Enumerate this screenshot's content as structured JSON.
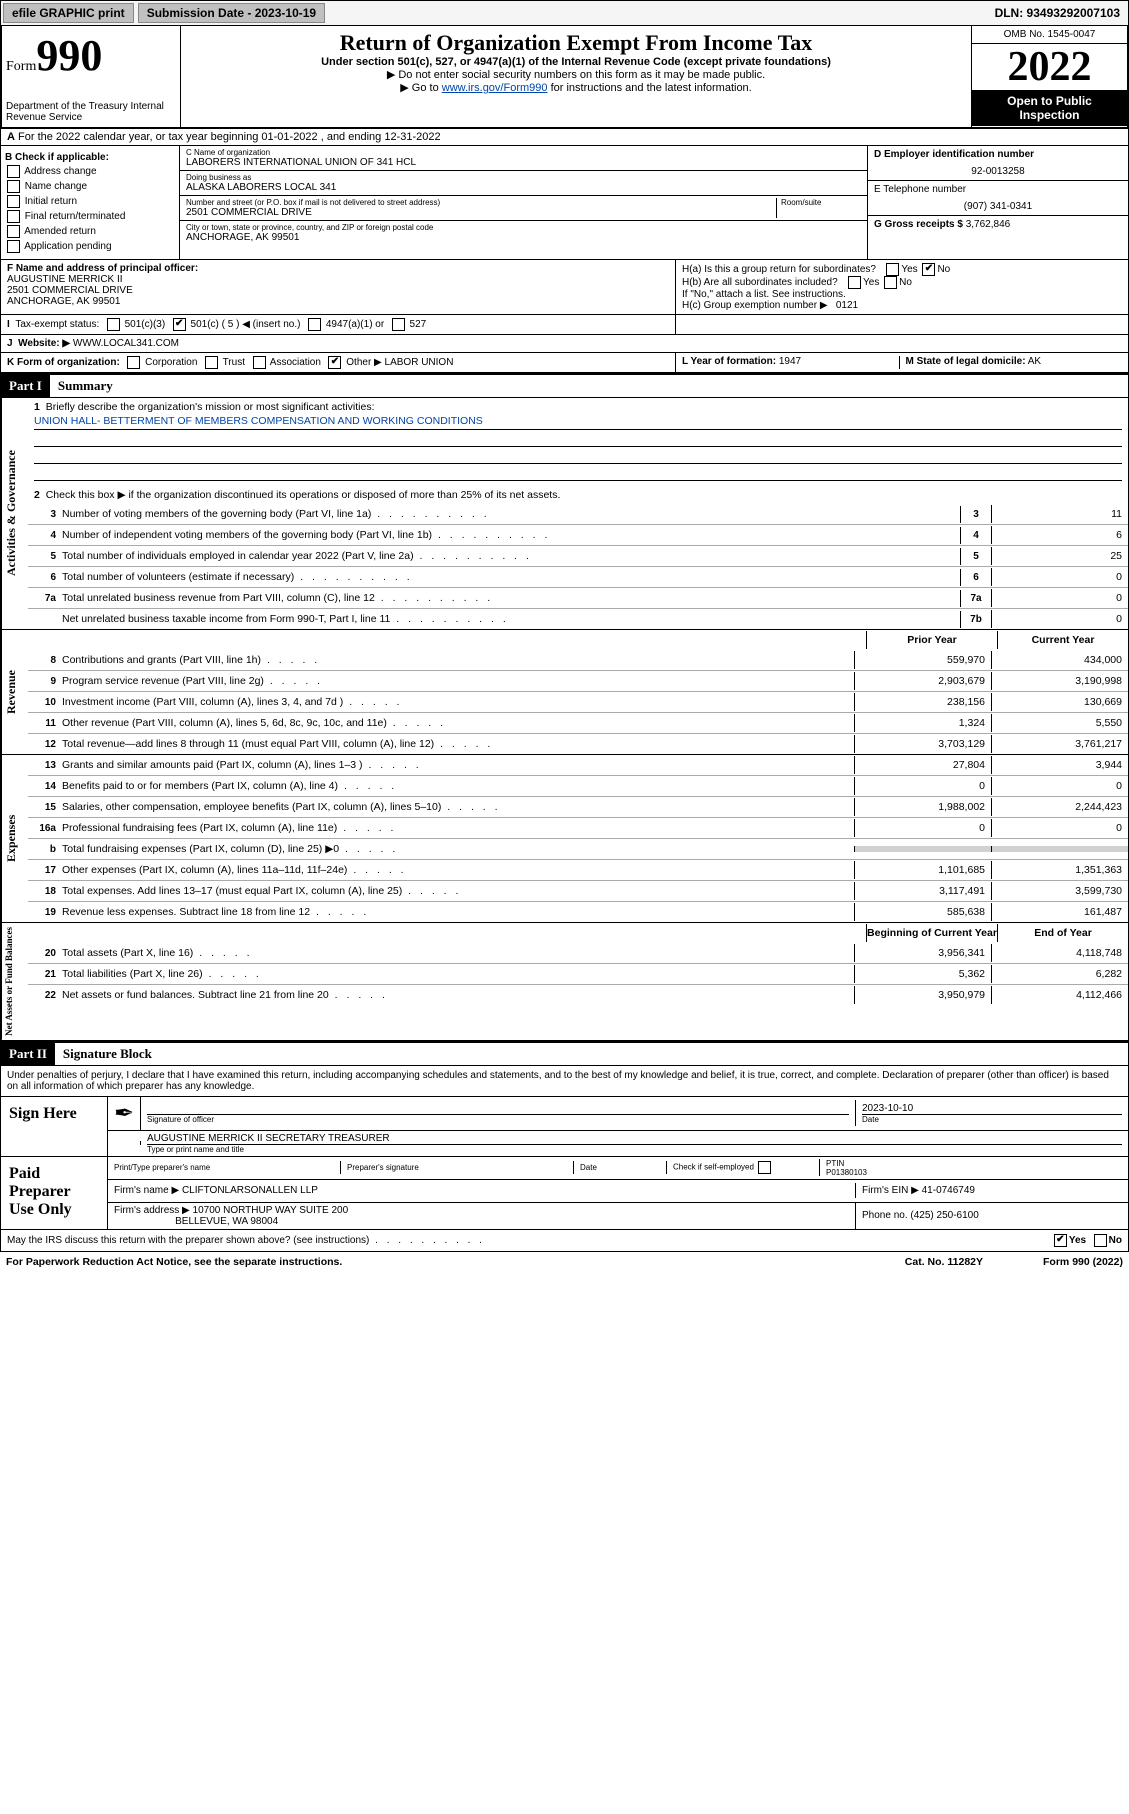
{
  "topbar": {
    "efile": "efile GRAPHIC print",
    "submission": "Submission Date - 2023-10-19",
    "dln": "DLN: 93493292007103"
  },
  "header": {
    "form_prefix": "Form",
    "form_number": "990",
    "title": "Return of Organization Exempt From Income Tax",
    "subtitle": "Under section 501(c), 527, or 4947(a)(1) of the Internal Revenue Code (except private foundations)",
    "note1": "▶ Do not enter social security numbers on this form as it may be made public.",
    "note2_pre": "▶ Go to ",
    "note2_link": "www.irs.gov/Form990",
    "note2_post": " for instructions and the latest information.",
    "dept": "Department of the Treasury Internal Revenue Service",
    "omb": "OMB No. 1545-0047",
    "year": "2022",
    "inspection": "Open to Public Inspection"
  },
  "row_a": "For the 2022 calendar year, or tax year beginning 01-01-2022    , and ending 12-31-2022",
  "col_b": {
    "title": "B Check if applicable:",
    "items": [
      "Address change",
      "Name change",
      "Initial return",
      "Final return/terminated",
      "Amended return",
      "Application pending"
    ]
  },
  "col_c": {
    "name_label": "C Name of organization",
    "name": "LABORERS INTERNATIONAL UNION OF 341 HCL",
    "dba_label": "Doing business as",
    "dba": "ALASKA LABORERS LOCAL 341",
    "street_label": "Number and street (or P.O. box if mail is not delivered to street address)",
    "room_label": "Room/suite",
    "street": "2501 COMMERCIAL DRIVE",
    "city_label": "City or town, state or province, country, and ZIP or foreign postal code",
    "city": "ANCHORAGE, AK  99501"
  },
  "col_d": {
    "ein_label": "D Employer identification number",
    "ein": "92-0013258",
    "phone_label": "E Telephone number",
    "phone": "(907) 341-0341",
    "gross_label": "G Gross receipts $",
    "gross": "3,762,846"
  },
  "row_f": {
    "label": "F Name and address of principal officer:",
    "name": "AUGUSTINE MERRICK II",
    "addr1": "2501 COMMERCIAL DRIVE",
    "addr2": "ANCHORAGE, AK  99501"
  },
  "row_h": {
    "ha": "H(a)  Is this a group return for subordinates?",
    "hb": "H(b)  Are all subordinates included?",
    "hb_note": "If \"No,\" attach a list. See instructions.",
    "hc": "H(c)  Group exemption number ▶",
    "hc_val": "0121",
    "yes": "Yes",
    "no": "No"
  },
  "row_i": {
    "label": "Tax-exempt status:",
    "o1": "501(c)(3)",
    "o2": "501(c) ( 5 ) ◀ (insert no.)",
    "o3": "4947(a)(1) or",
    "o4": "527"
  },
  "row_j": {
    "label": "Website: ▶",
    "val": "WWW.LOCAL341.COM"
  },
  "row_k": {
    "label": "K Form of organization:",
    "corp": "Corporation",
    "trust": "Trust",
    "assoc": "Association",
    "other": "Other ▶",
    "other_val": "LABOR UNION"
  },
  "row_l": {
    "label": "L Year of formation:",
    "val": "1947"
  },
  "row_m": {
    "label": "M State of legal domicile:",
    "val": "AK"
  },
  "part1": {
    "header": "Part I",
    "title": "Summary",
    "l1": "Briefly describe the organization's mission or most significant activities:",
    "mission": "UNION HALL- BETTERMENT OF MEMBERS COMPENSATION AND WORKING CONDITIONS",
    "l2": "Check this box ▶       if the organization discontinued its operations or disposed of more than 25% of its net assets.",
    "vlabel_ag": "Activities & Governance",
    "vlabel_rev": "Revenue",
    "vlabel_exp": "Expenses",
    "vlabel_net": "Net Assets or Fund Balances",
    "lines_ag": [
      {
        "num": "3",
        "desc": "Number of voting members of the governing body (Part VI, line 1a)",
        "box": "3",
        "val": "11"
      },
      {
        "num": "4",
        "desc": "Number of independent voting members of the governing body (Part VI, line 1b)",
        "box": "4",
        "val": "6"
      },
      {
        "num": "5",
        "desc": "Total number of individuals employed in calendar year 2022 (Part V, line 2a)",
        "box": "5",
        "val": "25"
      },
      {
        "num": "6",
        "desc": "Total number of volunteers (estimate if necessary)",
        "box": "6",
        "val": "0"
      },
      {
        "num": "7a",
        "desc": "Total unrelated business revenue from Part VIII, column (C), line 12",
        "box": "7a",
        "val": "0"
      },
      {
        "num": "",
        "desc": "Net unrelated business taxable income from Form 990-T, Part I, line 11",
        "box": "7b",
        "val": "0"
      }
    ],
    "col_prior": "Prior Year",
    "col_current": "Current Year",
    "lines_rev": [
      {
        "num": "8",
        "desc": "Contributions and grants (Part VIII, line 1h)",
        "prior": "559,970",
        "curr": "434,000"
      },
      {
        "num": "9",
        "desc": "Program service revenue (Part VIII, line 2g)",
        "prior": "2,903,679",
        "curr": "3,190,998"
      },
      {
        "num": "10",
        "desc": "Investment income (Part VIII, column (A), lines 3, 4, and 7d )",
        "prior": "238,156",
        "curr": "130,669"
      },
      {
        "num": "11",
        "desc": "Other revenue (Part VIII, column (A), lines 5, 6d, 8c, 9c, 10c, and 11e)",
        "prior": "1,324",
        "curr": "5,550"
      },
      {
        "num": "12",
        "desc": "Total revenue—add lines 8 through 11 (must equal Part VIII, column (A), line 12)",
        "prior": "3,703,129",
        "curr": "3,761,217"
      }
    ],
    "lines_exp": [
      {
        "num": "13",
        "desc": "Grants and similar amounts paid (Part IX, column (A), lines 1–3 )",
        "prior": "27,804",
        "curr": "3,944"
      },
      {
        "num": "14",
        "desc": "Benefits paid to or for members (Part IX, column (A), line 4)",
        "prior": "0",
        "curr": "0"
      },
      {
        "num": "15",
        "desc": "Salaries, other compensation, employee benefits (Part IX, column (A), lines 5–10)",
        "prior": "1,988,002",
        "curr": "2,244,423"
      },
      {
        "num": "16a",
        "desc": "Professional fundraising fees (Part IX, column (A), line 11e)",
        "prior": "0",
        "curr": "0"
      },
      {
        "num": "b",
        "desc": "Total fundraising expenses (Part IX, column (D), line 25) ▶0",
        "prior": "",
        "curr": "",
        "shade": true
      },
      {
        "num": "17",
        "desc": "Other expenses (Part IX, column (A), lines 11a–11d, 11f–24e)",
        "prior": "1,101,685",
        "curr": "1,351,363"
      },
      {
        "num": "18",
        "desc": "Total expenses. Add lines 13–17 (must equal Part IX, column (A), line 25)",
        "prior": "3,117,491",
        "curr": "3,599,730"
      },
      {
        "num": "19",
        "desc": "Revenue less expenses. Subtract line 18 from line 12",
        "prior": "585,638",
        "curr": "161,487"
      }
    ],
    "col_begin": "Beginning of Current Year",
    "col_end": "End of Year",
    "lines_net": [
      {
        "num": "20",
        "desc": "Total assets (Part X, line 16)",
        "prior": "3,956,341",
        "curr": "4,118,748"
      },
      {
        "num": "21",
        "desc": "Total liabilities (Part X, line 26)",
        "prior": "5,362",
        "curr": "6,282"
      },
      {
        "num": "22",
        "desc": "Net assets or fund balances. Subtract line 21 from line 20",
        "prior": "3,950,979",
        "curr": "4,112,466"
      }
    ]
  },
  "part2": {
    "header": "Part II",
    "title": "Signature Block",
    "declaration": "Under penalties of perjury, I declare that I have examined this return, including accompanying schedules and statements, and to the best of my knowledge and belief, it is true, correct, and complete. Declaration of preparer (other than officer) is based on all information of which preparer has any knowledge.",
    "sign_here": "Sign Here",
    "sig_officer": "Signature of officer",
    "date_label": "Date",
    "date_val": "2023-10-10",
    "officer_name": "AUGUSTINE MERRICK II SECRETARY TREASURER",
    "type_name": "Type or print name and title",
    "paid_preparer": "Paid Preparer Use Only",
    "prep_name_label": "Print/Type preparer's name",
    "prep_sig_label": "Preparer's signature",
    "check_self": "Check       if self-employed",
    "ptin_label": "PTIN",
    "ptin": "P01380103",
    "firm_name_label": "Firm's name    ▶",
    "firm_name": "CLIFTONLARSONALLEN LLP",
    "firm_ein_label": "Firm's EIN ▶",
    "firm_ein": "41-0746749",
    "firm_addr_label": "Firm's address ▶",
    "firm_addr": "10700 NORTHUP WAY SUITE 200",
    "firm_city": "BELLEVUE, WA  98004",
    "firm_phone_label": "Phone no.",
    "firm_phone": "(425) 250-6100",
    "discuss": "May the IRS discuss this return with the preparer shown above? (see instructions)"
  },
  "footer": {
    "left": "For Paperwork Reduction Act Notice, see the separate instructions.",
    "mid": "Cat. No. 11282Y",
    "right": "Form 990 (2022)"
  }
}
